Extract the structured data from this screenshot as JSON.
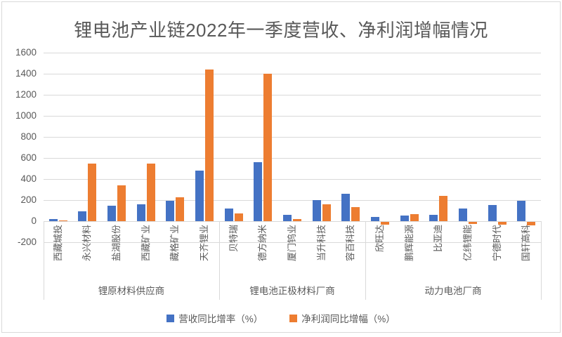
{
  "window": {
    "background": "#ffffff",
    "border_color": "#d9d9d9"
  },
  "chart_data": {
    "type": "bar",
    "title": "锂电池产业链2022年一季度营收、净利润增幅情况",
    "grid": true,
    "legend_position": "bottom",
    "y_axis": {
      "min": -200,
      "max": 1600,
      "step": 200,
      "tick_labels": [
        "1600",
        "1400",
        "1200",
        "1000",
        "800",
        "600",
        "400",
        "200",
        "0",
        "-200"
      ]
    },
    "groups": [
      {
        "label": "锂原材料供应商",
        "companies": [
          "西藏城投",
          "永兴材料",
          "盐湖股份",
          "西藏矿业",
          "藏格矿业",
          "天齐锂业"
        ]
      },
      {
        "label": "锂电池正极材料厂商",
        "companies": [
          "贝特瑞",
          "德方纳米",
          "厦门钨业",
          "当升科技",
          "容百科技"
        ]
      },
      {
        "label": "动力电池厂商",
        "companies": [
          "欣旺达",
          "鹏辉能源",
          "比亚迪",
          "亿纬锂能",
          "宁德时代",
          "国轩高科"
        ]
      }
    ],
    "series": [
      {
        "name": "营收同比增率（%）",
        "color": "#4472C4",
        "values": [
          20,
          95,
          150,
          160,
          195,
          480,
          118,
          560,
          62,
          200,
          262,
          38,
          54,
          63,
          122,
          152,
          195
        ]
      },
      {
        "name": "净利润同比增幅（%）",
        "color": "#ED7D31",
        "values": [
          8,
          550,
          340,
          550,
          225,
          1440,
          72,
          1400,
          20,
          162,
          135,
          -26,
          70,
          240,
          -19,
          -24,
          -33
        ]
      }
    ],
    "colors": {
      "gridline": "#d9d9d9",
      "axis_text": "#595959",
      "title_text": "#595959"
    }
  }
}
